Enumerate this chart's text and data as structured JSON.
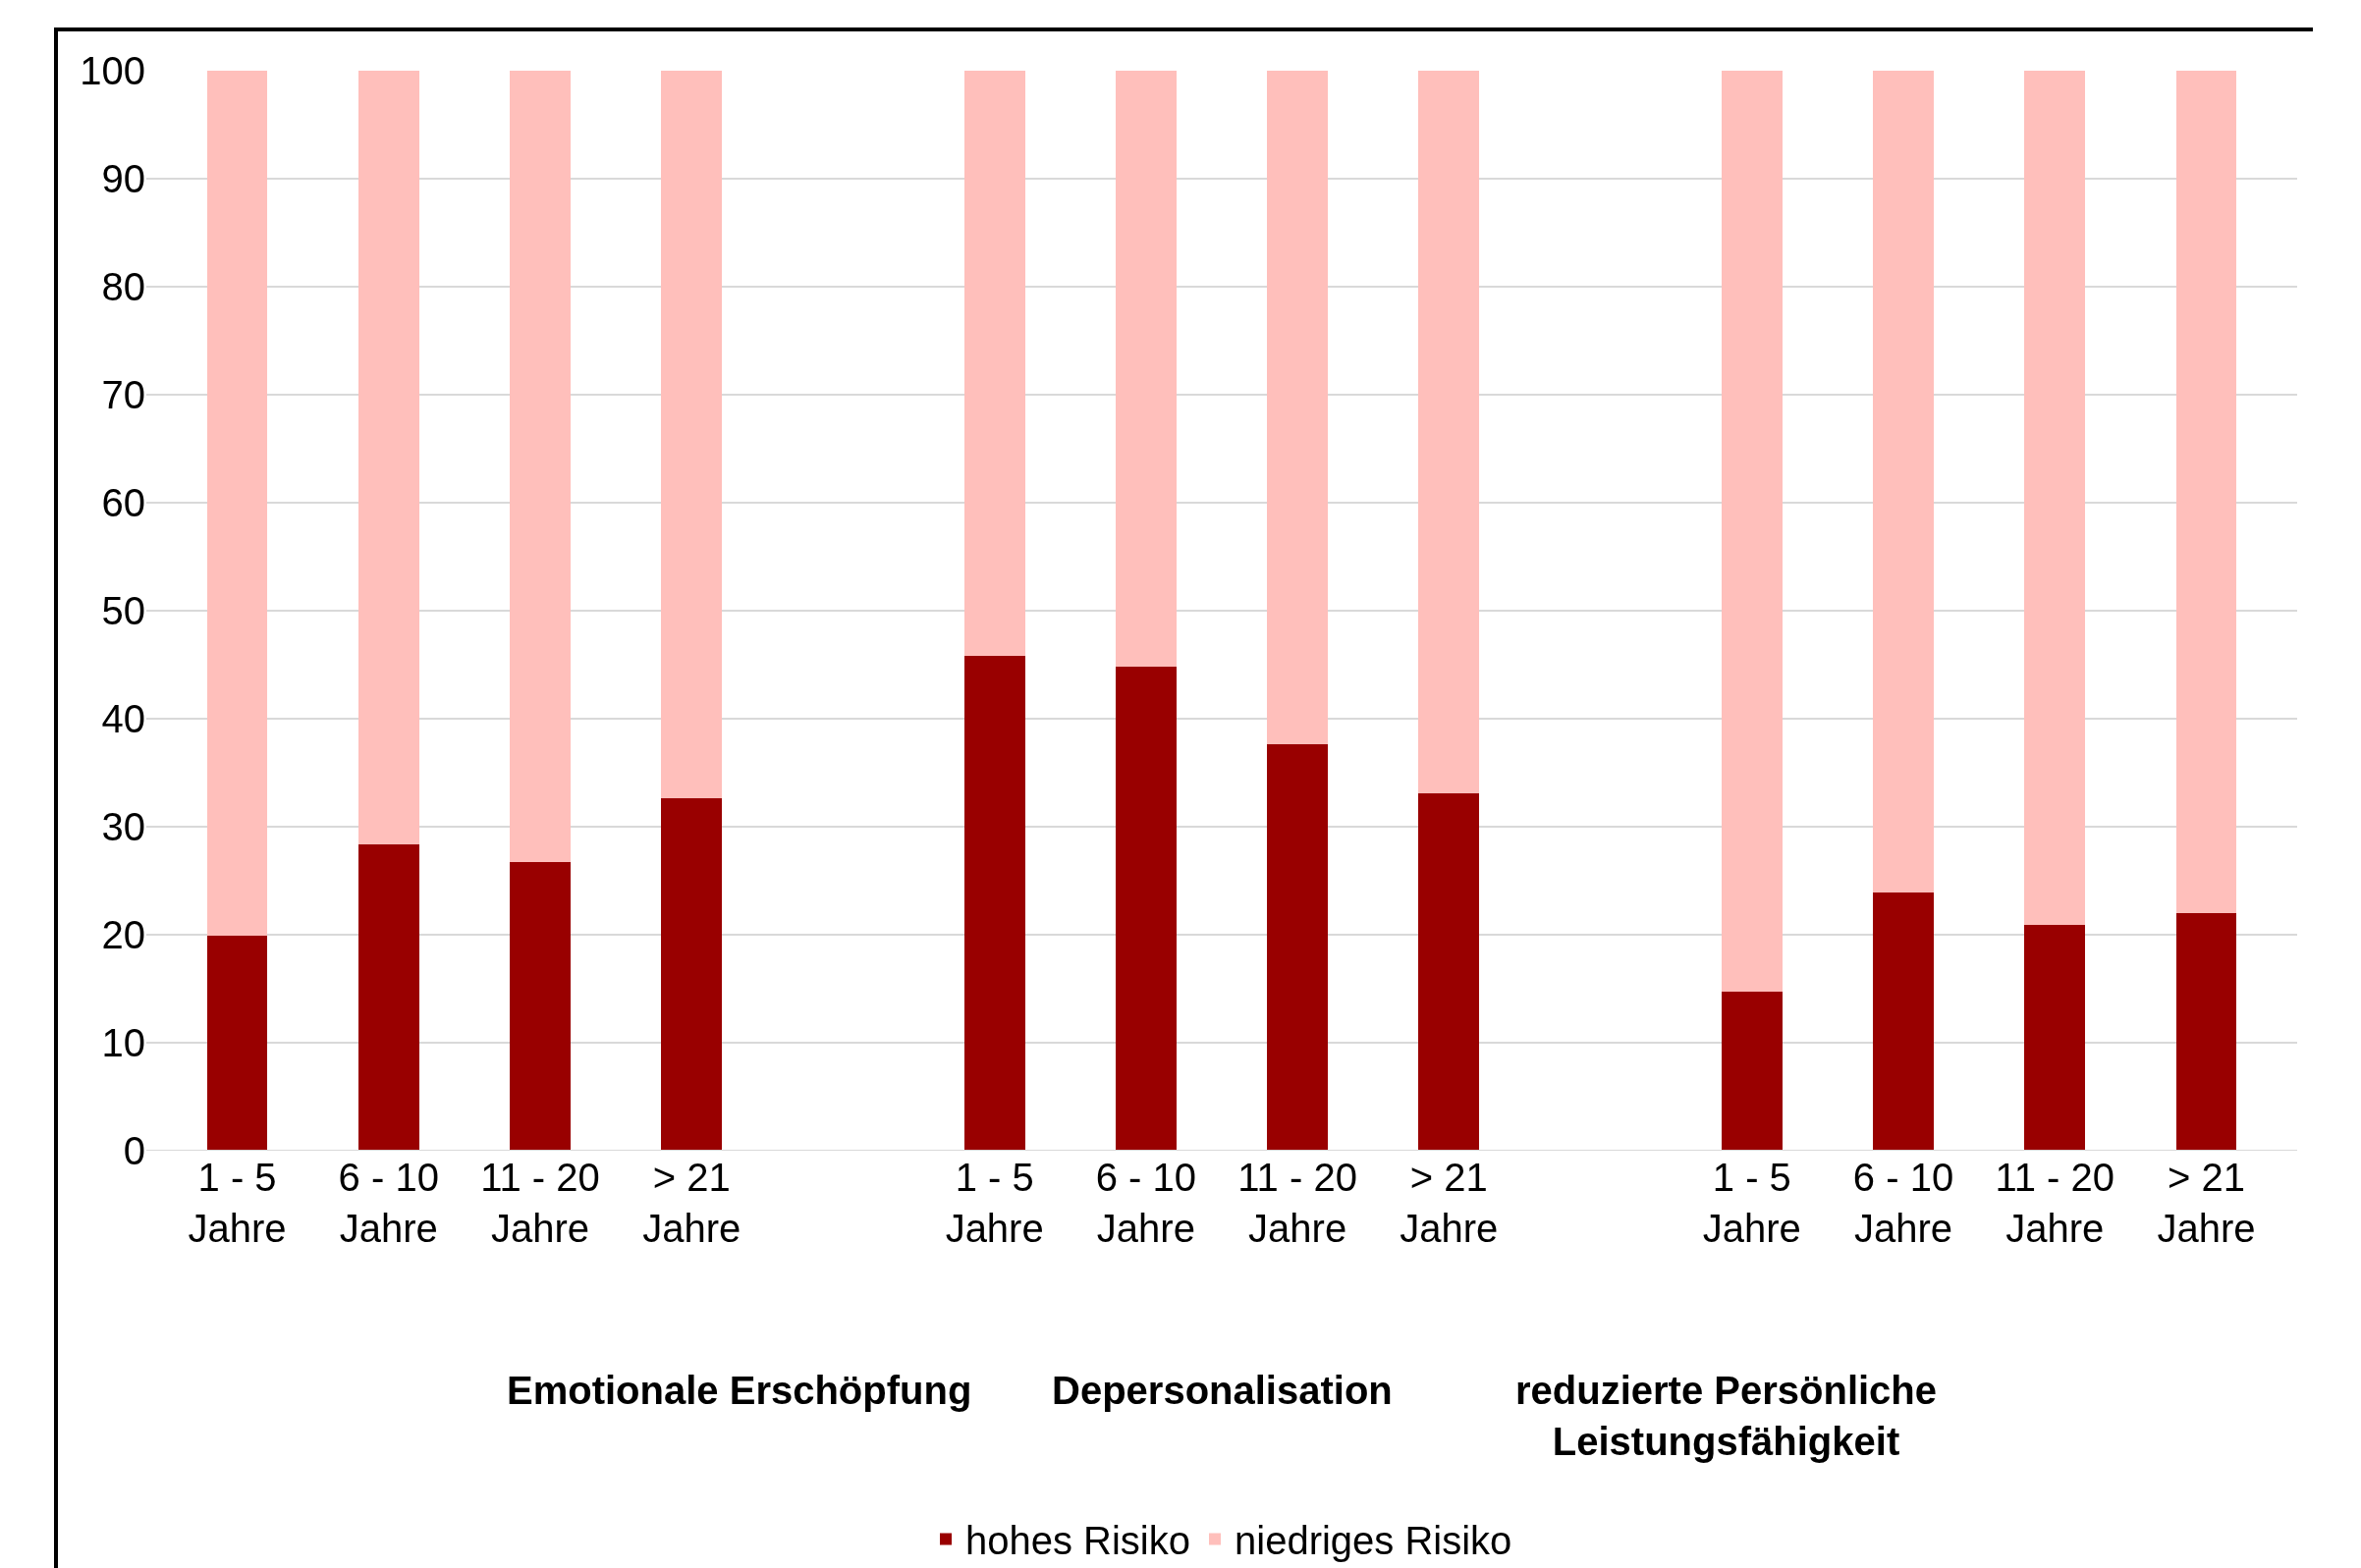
{
  "chart_data": {
    "type": "bar",
    "stacked": true,
    "categories": [
      "1 - 5\nJahre",
      "6 - 10\nJahre",
      "11 - 20\nJahre",
      "> 21\nJahre",
      null,
      "1 - 5\nJahre",
      "6 - 10\nJahre",
      "11 - 20\nJahre",
      "> 21\nJahre",
      null,
      "1 - 5\nJahre",
      "6 - 10\nJahre",
      "11 - 20\nJahre",
      "> 21\nJahre"
    ],
    "series": [
      {
        "name": "hohes Risiko",
        "color": "#990000",
        "values": [
          19.9,
          28.4,
          26.7,
          32.6,
          null,
          45.8,
          44.8,
          37.6,
          33.1,
          null,
          14.7,
          23.9,
          20.9,
          22.0
        ]
      },
      {
        "name": "niedriges Risiko",
        "color": "#ffbfbb",
        "values": [
          80.1,
          71.6,
          73.3,
          67.4,
          null,
          54.2,
          55.2,
          62.4,
          66.9,
          null,
          85.3,
          76.1,
          79.1,
          78.0
        ]
      }
    ],
    "ylim": [
      0,
      100
    ],
    "yticks": [
      0,
      10,
      20,
      30,
      40,
      50,
      60,
      70,
      80,
      90,
      100
    ],
    "grid": "y",
    "legend": "bottom",
    "annotations": [
      "Emotionale Erschöpfung",
      "Depersonalisation",
      "reduzierte Persönliche\nLeistungsfähigkeit"
    ]
  }
}
